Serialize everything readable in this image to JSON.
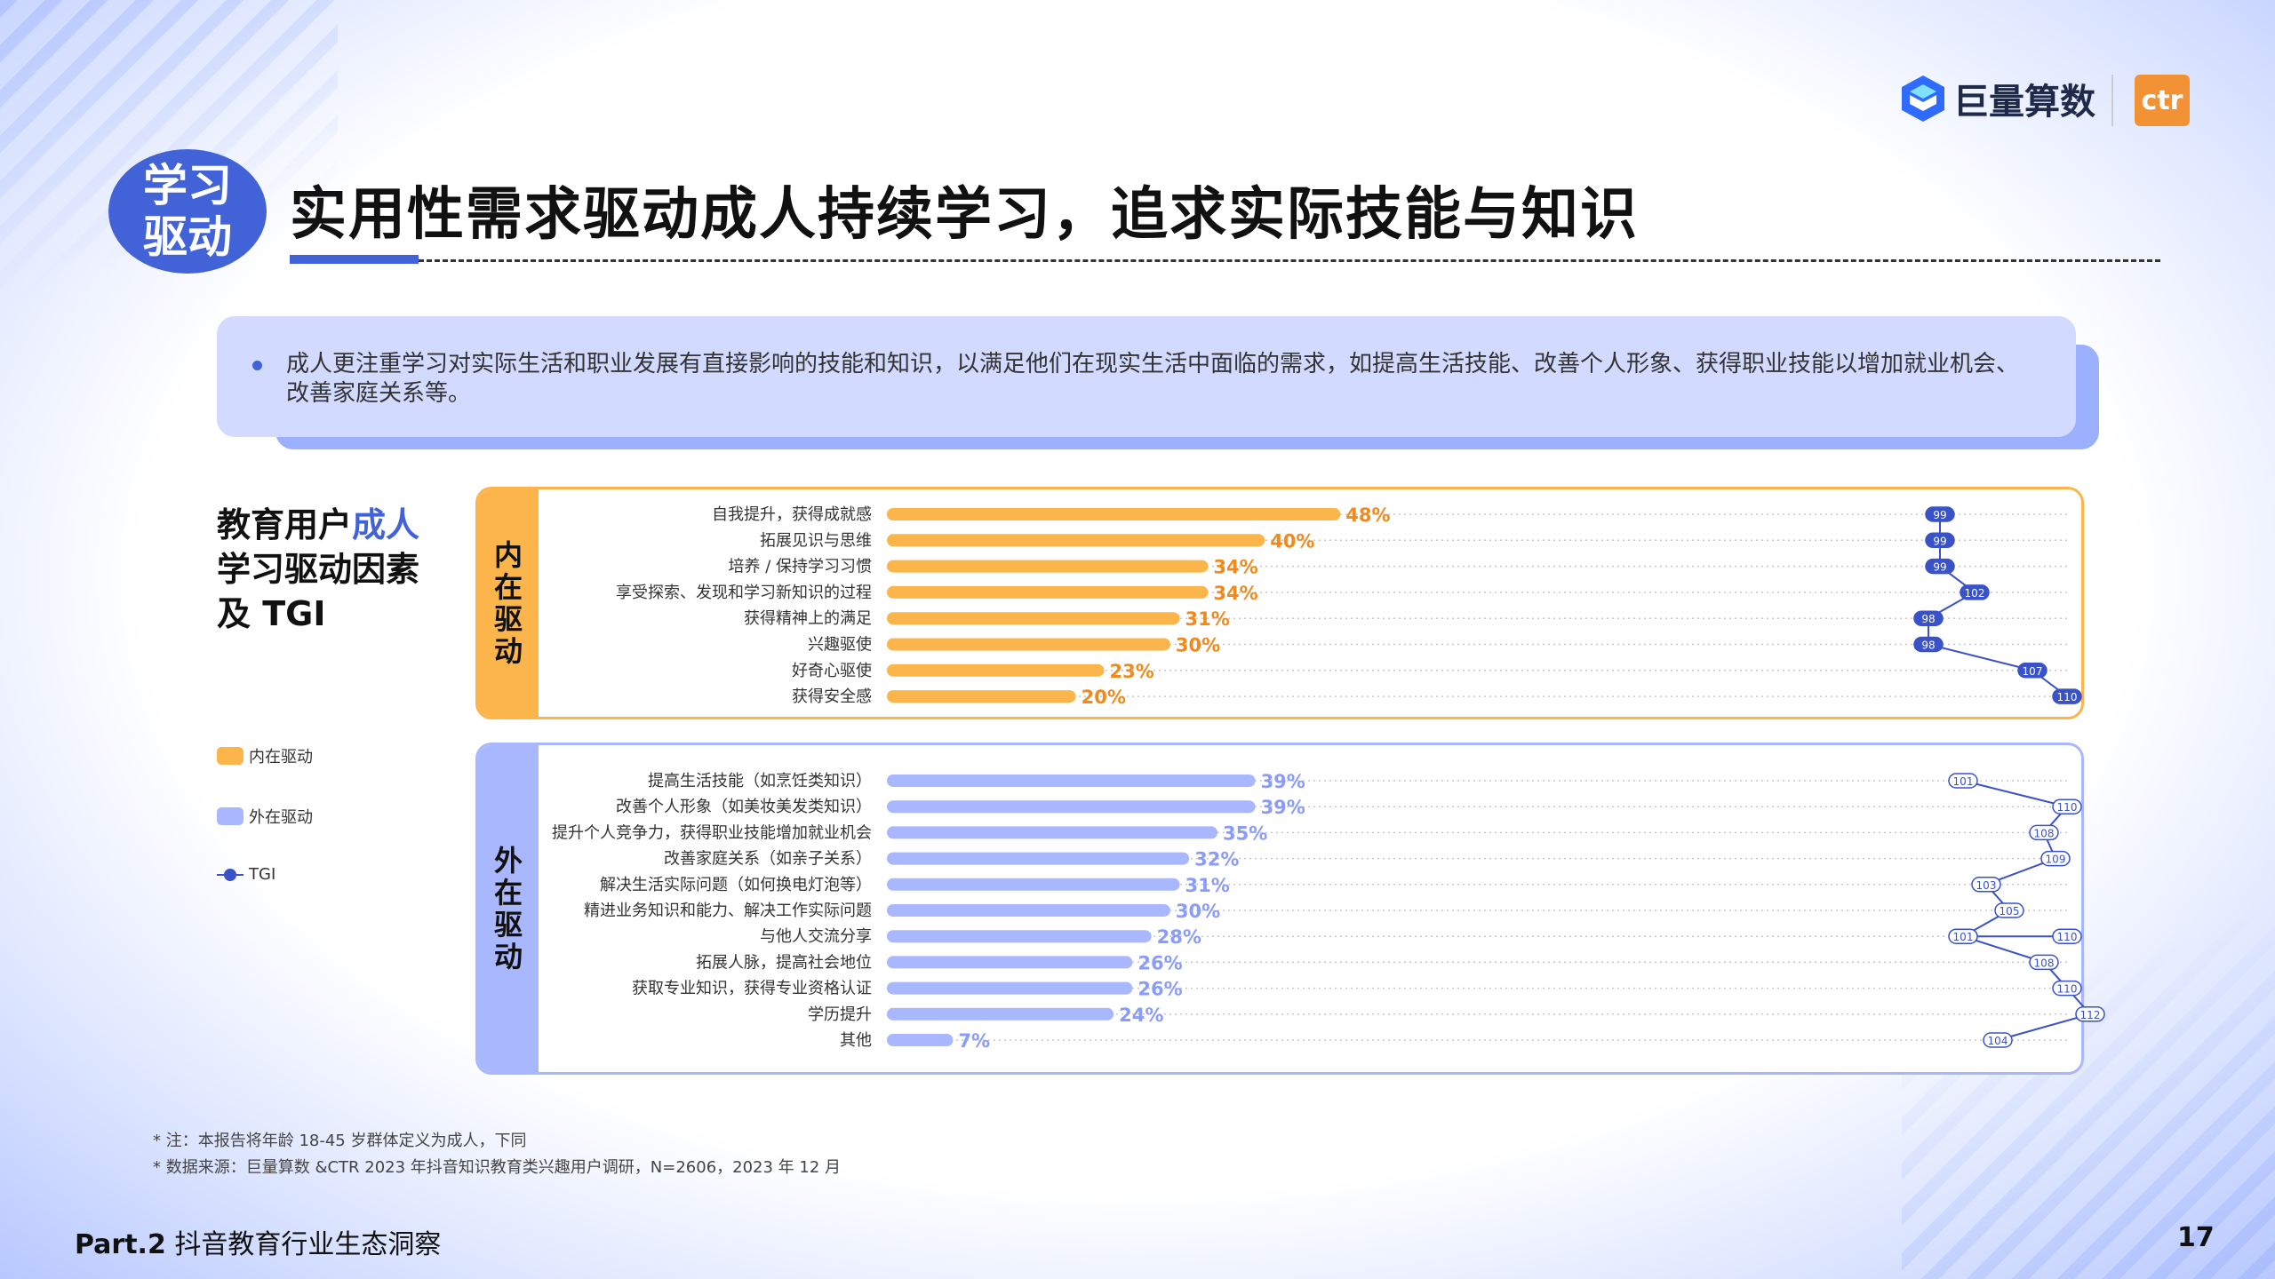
{
  "badge": {
    "line1": "学习",
    "line2": "驱动"
  },
  "title": "实用性需求驱动成人持续学习，追求实际技能与知识",
  "logos": {
    "ocean": "巨量算数",
    "ctr": "ctr"
  },
  "summary": "成人更注重学习对实际生活和职业发展有直接影响的技能和知识，以满足他们在现实生活中面临的需求，如提高生活技能、改善个人形象、获得职业技能以增加就业机会、改善家庭关系等。",
  "side": {
    "line1_a": "教育用户",
    "line1_b": "成人",
    "line2": "学习驱动因素",
    "line3": "及 TGI"
  },
  "legend": {
    "inner": "内在驱动",
    "outer": "外在驱动",
    "tgi": "TGI"
  },
  "colors": {
    "inner": "#fbb54a",
    "inner_label": "#f08a1c",
    "outer": "#a9b7ff",
    "outer_label": "#8a9cf8",
    "tgi": "#3a52c8",
    "accent": "#4263d8"
  },
  "chart_data": {
    "type": "bar",
    "orientation": "horizontal",
    "value_unit": "%",
    "groups": [
      {
        "name": "内在驱动",
        "tab": "内在驱动",
        "categories": [
          "自我提升，获得成就感",
          "拓展见识与思维",
          "培养 / 保持学习习惯",
          "享受探索、发现和学习新知识的过程",
          "获得精神上的满足",
          "兴趣驱使",
          "好奇心驱使",
          "获得安全感"
        ],
        "values": [
          48,
          40,
          34,
          34,
          31,
          30,
          23,
          20
        ],
        "tgi": [
          99,
          99,
          99,
          102,
          98,
          98,
          107,
          110
        ]
      },
      {
        "name": "外在驱动",
        "tab": "外在驱动",
        "categories": [
          "提高生活技能（如烹饪类知识）",
          "改善个人形象（如美妆美发类知识）",
          "提升个人竞争力，获得职业技能增加就业机会",
          "改善家庭关系（如亲子关系）",
          "解决生活实际问题（如何换电灯泡等）",
          "精进业务知识和能力、解决工作实际问题",
          "与他人交流分享",
          "拓展人脉，提高社会地位",
          "获取专业知识，获得专业资格认证",
          "学历提升",
          "其他"
        ],
        "values": [
          39,
          39,
          35,
          32,
          31,
          30,
          28,
          26,
          26,
          24,
          7
        ],
        "tgi": [
          101,
          110,
          108,
          109,
          103,
          105,
          101,
          108,
          110,
          112,
          104
        ],
        "tgi_extra": {
          "index": 6,
          "value": 110
        }
      }
    ]
  },
  "notes": {
    "n1": "* 注：本报告将年龄 18-45 岁群体定义为成人，下同",
    "n2": "* 数据来源：巨量算数 &CTR 2023 年抖音知识教育类兴趣用户调研，N=2606，2023 年 12 月"
  },
  "footer": {
    "part": "Part.2",
    "section": "抖音教育行业生态洞察",
    "page": "17"
  }
}
